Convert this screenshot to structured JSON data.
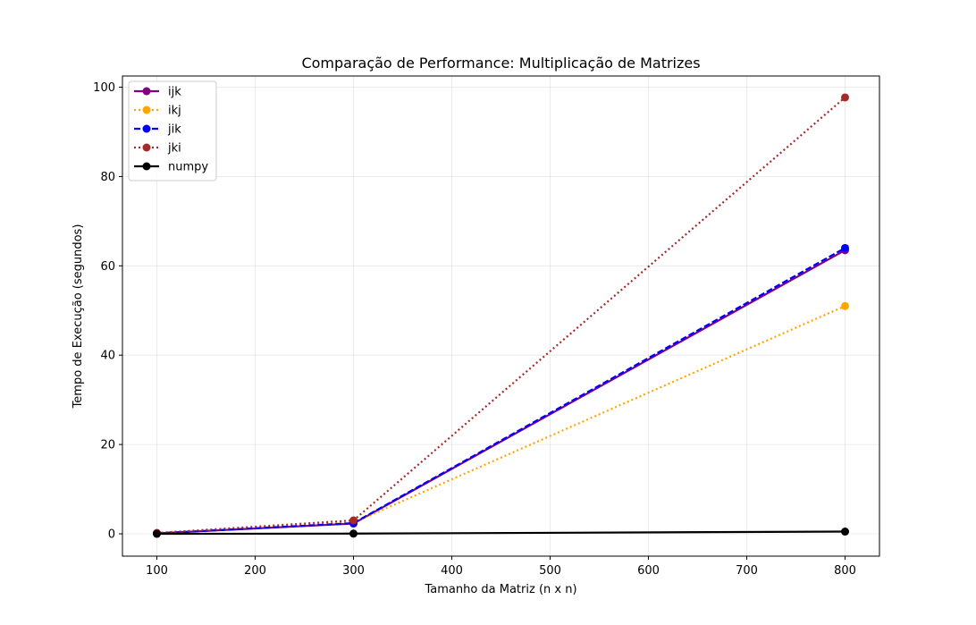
{
  "chart_data": {
    "type": "line",
    "title": "Comparação de Performance: Multiplicação de Matrizes",
    "xlabel": "Tamanho da Matriz (n x n)",
    "ylabel": "Tempo de Execução (segundos)",
    "x": [
      100,
      300,
      800
    ],
    "xlim": [
      65,
      835
    ],
    "ylim": [
      -5,
      102.5
    ],
    "xticks": [
      100,
      200,
      300,
      400,
      500,
      600,
      700,
      800
    ],
    "yticks": [
      0,
      20,
      40,
      60,
      80,
      100
    ],
    "grid": true,
    "legend_position": "top-left",
    "series": [
      {
        "name": "ijk",
        "values": [
          0.1,
          2.3,
          63.5
        ],
        "color": "#800080",
        "dash": "solid"
      },
      {
        "name": "ikj",
        "values": [
          0.1,
          2.5,
          51.0
        ],
        "color": "#ffa500",
        "dash": "dotted"
      },
      {
        "name": "jik",
        "values": [
          0.1,
          2.4,
          64.0
        ],
        "color": "#0000ff",
        "dash": "dashed"
      },
      {
        "name": "jki",
        "values": [
          0.2,
          3.0,
          97.7
        ],
        "color": "#a52a2a",
        "dash": "dotted"
      },
      {
        "name": "numpy",
        "values": [
          0.0,
          0.05,
          0.5
        ],
        "color": "#000000",
        "dash": "solid"
      }
    ]
  }
}
